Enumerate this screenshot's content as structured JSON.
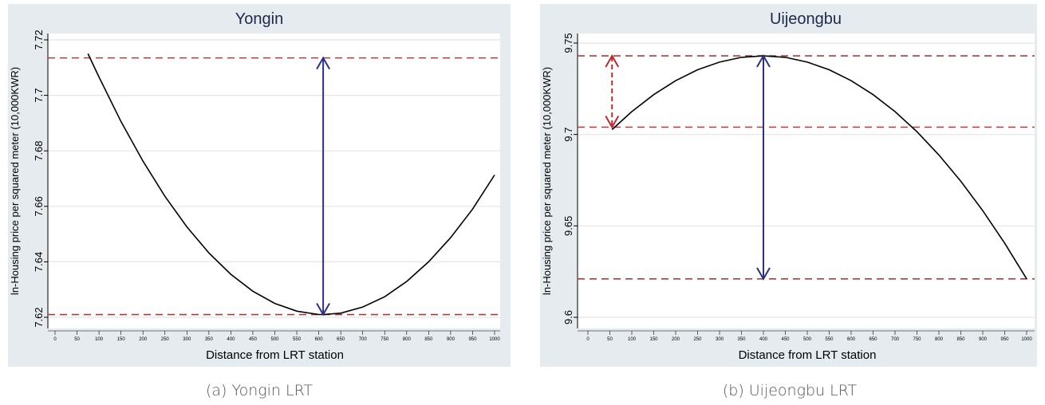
{
  "chart_data": [
    {
      "type": "line",
      "title": "Yongin",
      "caption": "(a) Yongin LRT",
      "xlabel": "Distance from LRT station",
      "ylabel": "ln-Housing price per squared meter (10,000KWR)",
      "xlim": [
        0,
        1000
      ],
      "ylim": [
        7.62,
        7.72
      ],
      "xticks": [
        0,
        50,
        100,
        150,
        200,
        250,
        300,
        350,
        400,
        450,
        500,
        550,
        600,
        650,
        700,
        750,
        800,
        850,
        900,
        950,
        1000
      ],
      "yticks": [
        "7.62",
        "7.64",
        "7.66",
        "7.68",
        "7.7",
        "7.72"
      ],
      "grid": true,
      "x": [
        75,
        100,
        150,
        200,
        250,
        300,
        350,
        400,
        450,
        500,
        550,
        600,
        610,
        650,
        700,
        750,
        800,
        850,
        900,
        950,
        1000
      ],
      "y": [
        7.715,
        7.7066,
        7.6906,
        7.6763,
        7.6636,
        7.6526,
        7.6432,
        7.6355,
        7.6294,
        7.625,
        7.6222,
        7.621,
        7.621,
        7.6215,
        7.6237,
        7.6274,
        7.6329,
        7.64,
        7.6487,
        7.659,
        7.6713
      ],
      "reference_lines": [
        7.7135,
        7.621
      ],
      "arrows": [
        {
          "x": 610,
          "from": 7.7135,
          "to": 7.621,
          "color": "#2e2f8a",
          "style": "solid"
        }
      ]
    },
    {
      "type": "line",
      "title": "Uijeongbu",
      "caption": "(b) Uijeongbu LRT",
      "xlabel": "Distance from LRT station",
      "ylabel": "ln-Housing price per squared meter (10,000KWR)",
      "xlim": [
        0,
        1000
      ],
      "ylim": [
        9.6,
        9.75
      ],
      "xticks": [
        0,
        50,
        100,
        150,
        200,
        250,
        300,
        350,
        400,
        450,
        500,
        550,
        600,
        650,
        700,
        750,
        800,
        850,
        900,
        950,
        1000
      ],
      "yticks": [
        "9.6",
        "9.65",
        "9.7",
        "9.75"
      ],
      "grid": true,
      "x": [
        55,
        100,
        150,
        200,
        250,
        300,
        350,
        400,
        450,
        500,
        550,
        600,
        650,
        700,
        750,
        800,
        850,
        900,
        950,
        1000
      ],
      "y": [
        9.7027,
        9.7125,
        9.7218,
        9.7294,
        9.7354,
        9.7396,
        9.7422,
        9.743,
        9.7422,
        9.7396,
        9.7354,
        9.7294,
        9.7218,
        9.7125,
        9.7015,
        9.6888,
        9.6744,
        9.6583,
        9.6405,
        9.621
      ],
      "reference_lines": [
        9.743,
        9.704,
        9.621
      ],
      "arrows": [
        {
          "x": 400,
          "from": 9.743,
          "to": 9.621,
          "color": "#2e2f8a",
          "style": "solid"
        },
        {
          "x": 55,
          "from": 9.743,
          "to": 9.704,
          "color": "#c0282d",
          "style": "dashed"
        }
      ]
    }
  ],
  "colors": {
    "panel_bg": "#e5ebee",
    "curve": "#000000",
    "reference_line": "#b33a3a",
    "grid": "#e2e6e8"
  }
}
